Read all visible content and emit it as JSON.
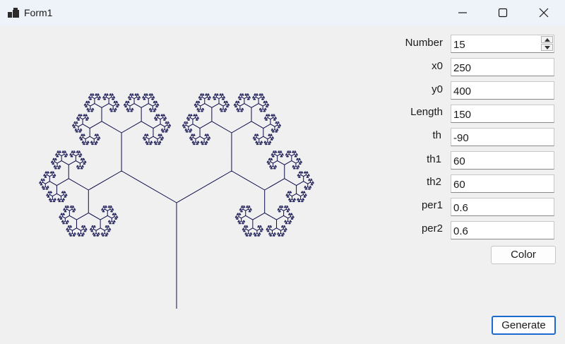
{
  "window": {
    "title": "Form1"
  },
  "controls": {
    "number": {
      "label": "Number",
      "value": "15"
    },
    "x0": {
      "label": "x0",
      "value": "250"
    },
    "y0": {
      "label": "y0",
      "value": "400"
    },
    "length": {
      "label": "Length",
      "value": "150"
    },
    "th": {
      "label": "th",
      "value": "-90"
    },
    "th1": {
      "label": "th1",
      "value": "60"
    },
    "th2": {
      "label": "th2",
      "value": "60"
    },
    "per1": {
      "label": "per1",
      "value": "0.6"
    },
    "per2": {
      "label": "per2",
      "value": "0.6"
    }
  },
  "buttons": {
    "color": "Color",
    "generate": "Generate"
  },
  "colors": {
    "tree": "#0b0b4a",
    "accent": "#1c6ad0"
  }
}
